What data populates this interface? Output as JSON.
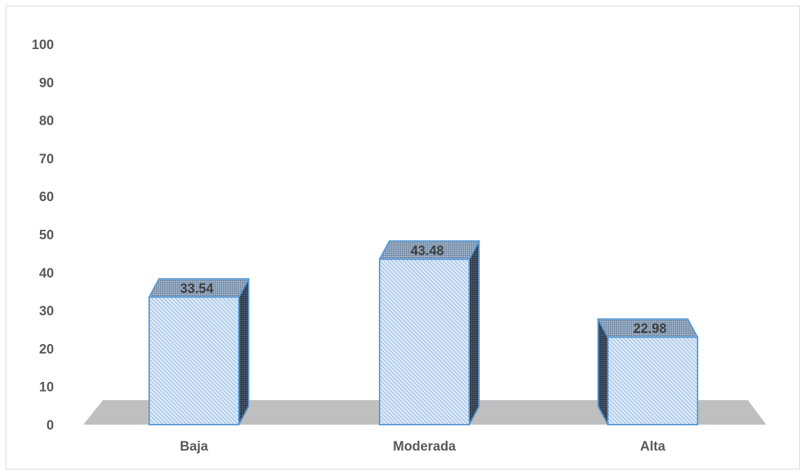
{
  "chart_data": {
    "type": "bar",
    "title": "",
    "xlabel": "",
    "ylabel": "",
    "categories": [
      "Baja",
      "Moderada",
      "Alta"
    ],
    "values": [
      33.54,
      43.48,
      22.98
    ],
    "value_labels": [
      "33.54",
      "43.48",
      "22.98"
    ],
    "ylim": [
      0,
      100
    ],
    "yticks": [
      0,
      10,
      20,
      30,
      40,
      50,
      60,
      70,
      80,
      90,
      100
    ],
    "ytick_labels": [
      "0",
      "10",
      "20",
      "30",
      "40",
      "50",
      "60",
      "70",
      "80",
      "90",
      "100"
    ],
    "grid": false,
    "legend": "none",
    "style": "3d-column-hatched",
    "colors": {
      "bar_fill": "#dbe9f8",
      "bar_hatch": "#5b8fc9",
      "bar_outline": "#5b9bd5",
      "bar_top": "#8ea9c8",
      "bar_side": "#3b4656",
      "floor": "#bfbfbf",
      "axis_text": "#595959",
      "label_text": "#404040"
    }
  }
}
